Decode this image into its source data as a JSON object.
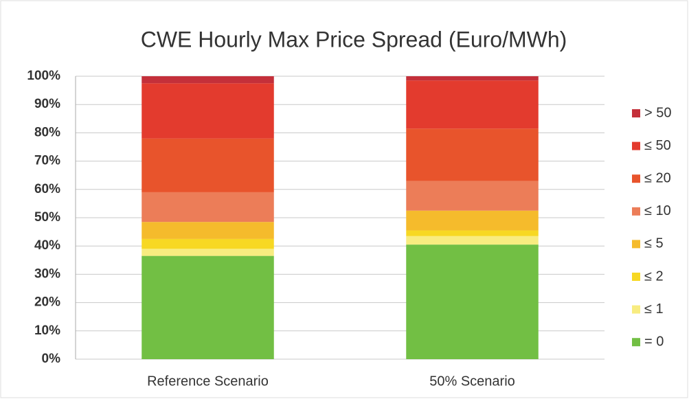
{
  "chart_data": {
    "type": "stacked_bar_100",
    "title": "CWE Hourly Max Price Spread (Euro/MWh)",
    "categories": [
      "Reference Scenario",
      "50% Scenario"
    ],
    "series": [
      {
        "name": "= 0",
        "color": "#72bf44",
        "values": [
          36.5,
          40.5
        ]
      },
      {
        "name": "≤ 1",
        "color": "#f8ec80",
        "values": [
          2.5,
          3
        ]
      },
      {
        "name": "≤ 2",
        "color": "#f7d823",
        "values": [
          3.5,
          2
        ]
      },
      {
        "name": "≤ 5",
        "color": "#f5bb2c",
        "values": [
          6,
          7
        ]
      },
      {
        "name": "≤ 10",
        "color": "#ec7d58",
        "values": [
          10.5,
          10.5
        ]
      },
      {
        "name": "≤ 20",
        "color": "#e8542c",
        "values": [
          19,
          18.5
        ]
      },
      {
        "name": "≤ 50",
        "color": "#e33b2e",
        "values": [
          19.5,
          17
        ]
      },
      {
        "name": "> 50",
        "color": "#c4303a",
        "values": [
          2.5,
          1.5
        ]
      }
    ],
    "ylim": [
      0,
      100
    ],
    "yticks": [
      {
        "value": 0,
        "label": "0%"
      },
      {
        "value": 10,
        "label": "10%"
      },
      {
        "value": 20,
        "label": "20%"
      },
      {
        "value": 30,
        "label": "30%"
      },
      {
        "value": 40,
        "label": "40%"
      },
      {
        "value": 50,
        "label": "50%"
      },
      {
        "value": 60,
        "label": "60%"
      },
      {
        "value": 70,
        "label": "70%"
      },
      {
        "value": 80,
        "label": "80%"
      },
      {
        "value": 90,
        "label": "90%"
      },
      {
        "value": 100,
        "label": "100%"
      }
    ],
    "grid": true,
    "legend": "right"
  }
}
